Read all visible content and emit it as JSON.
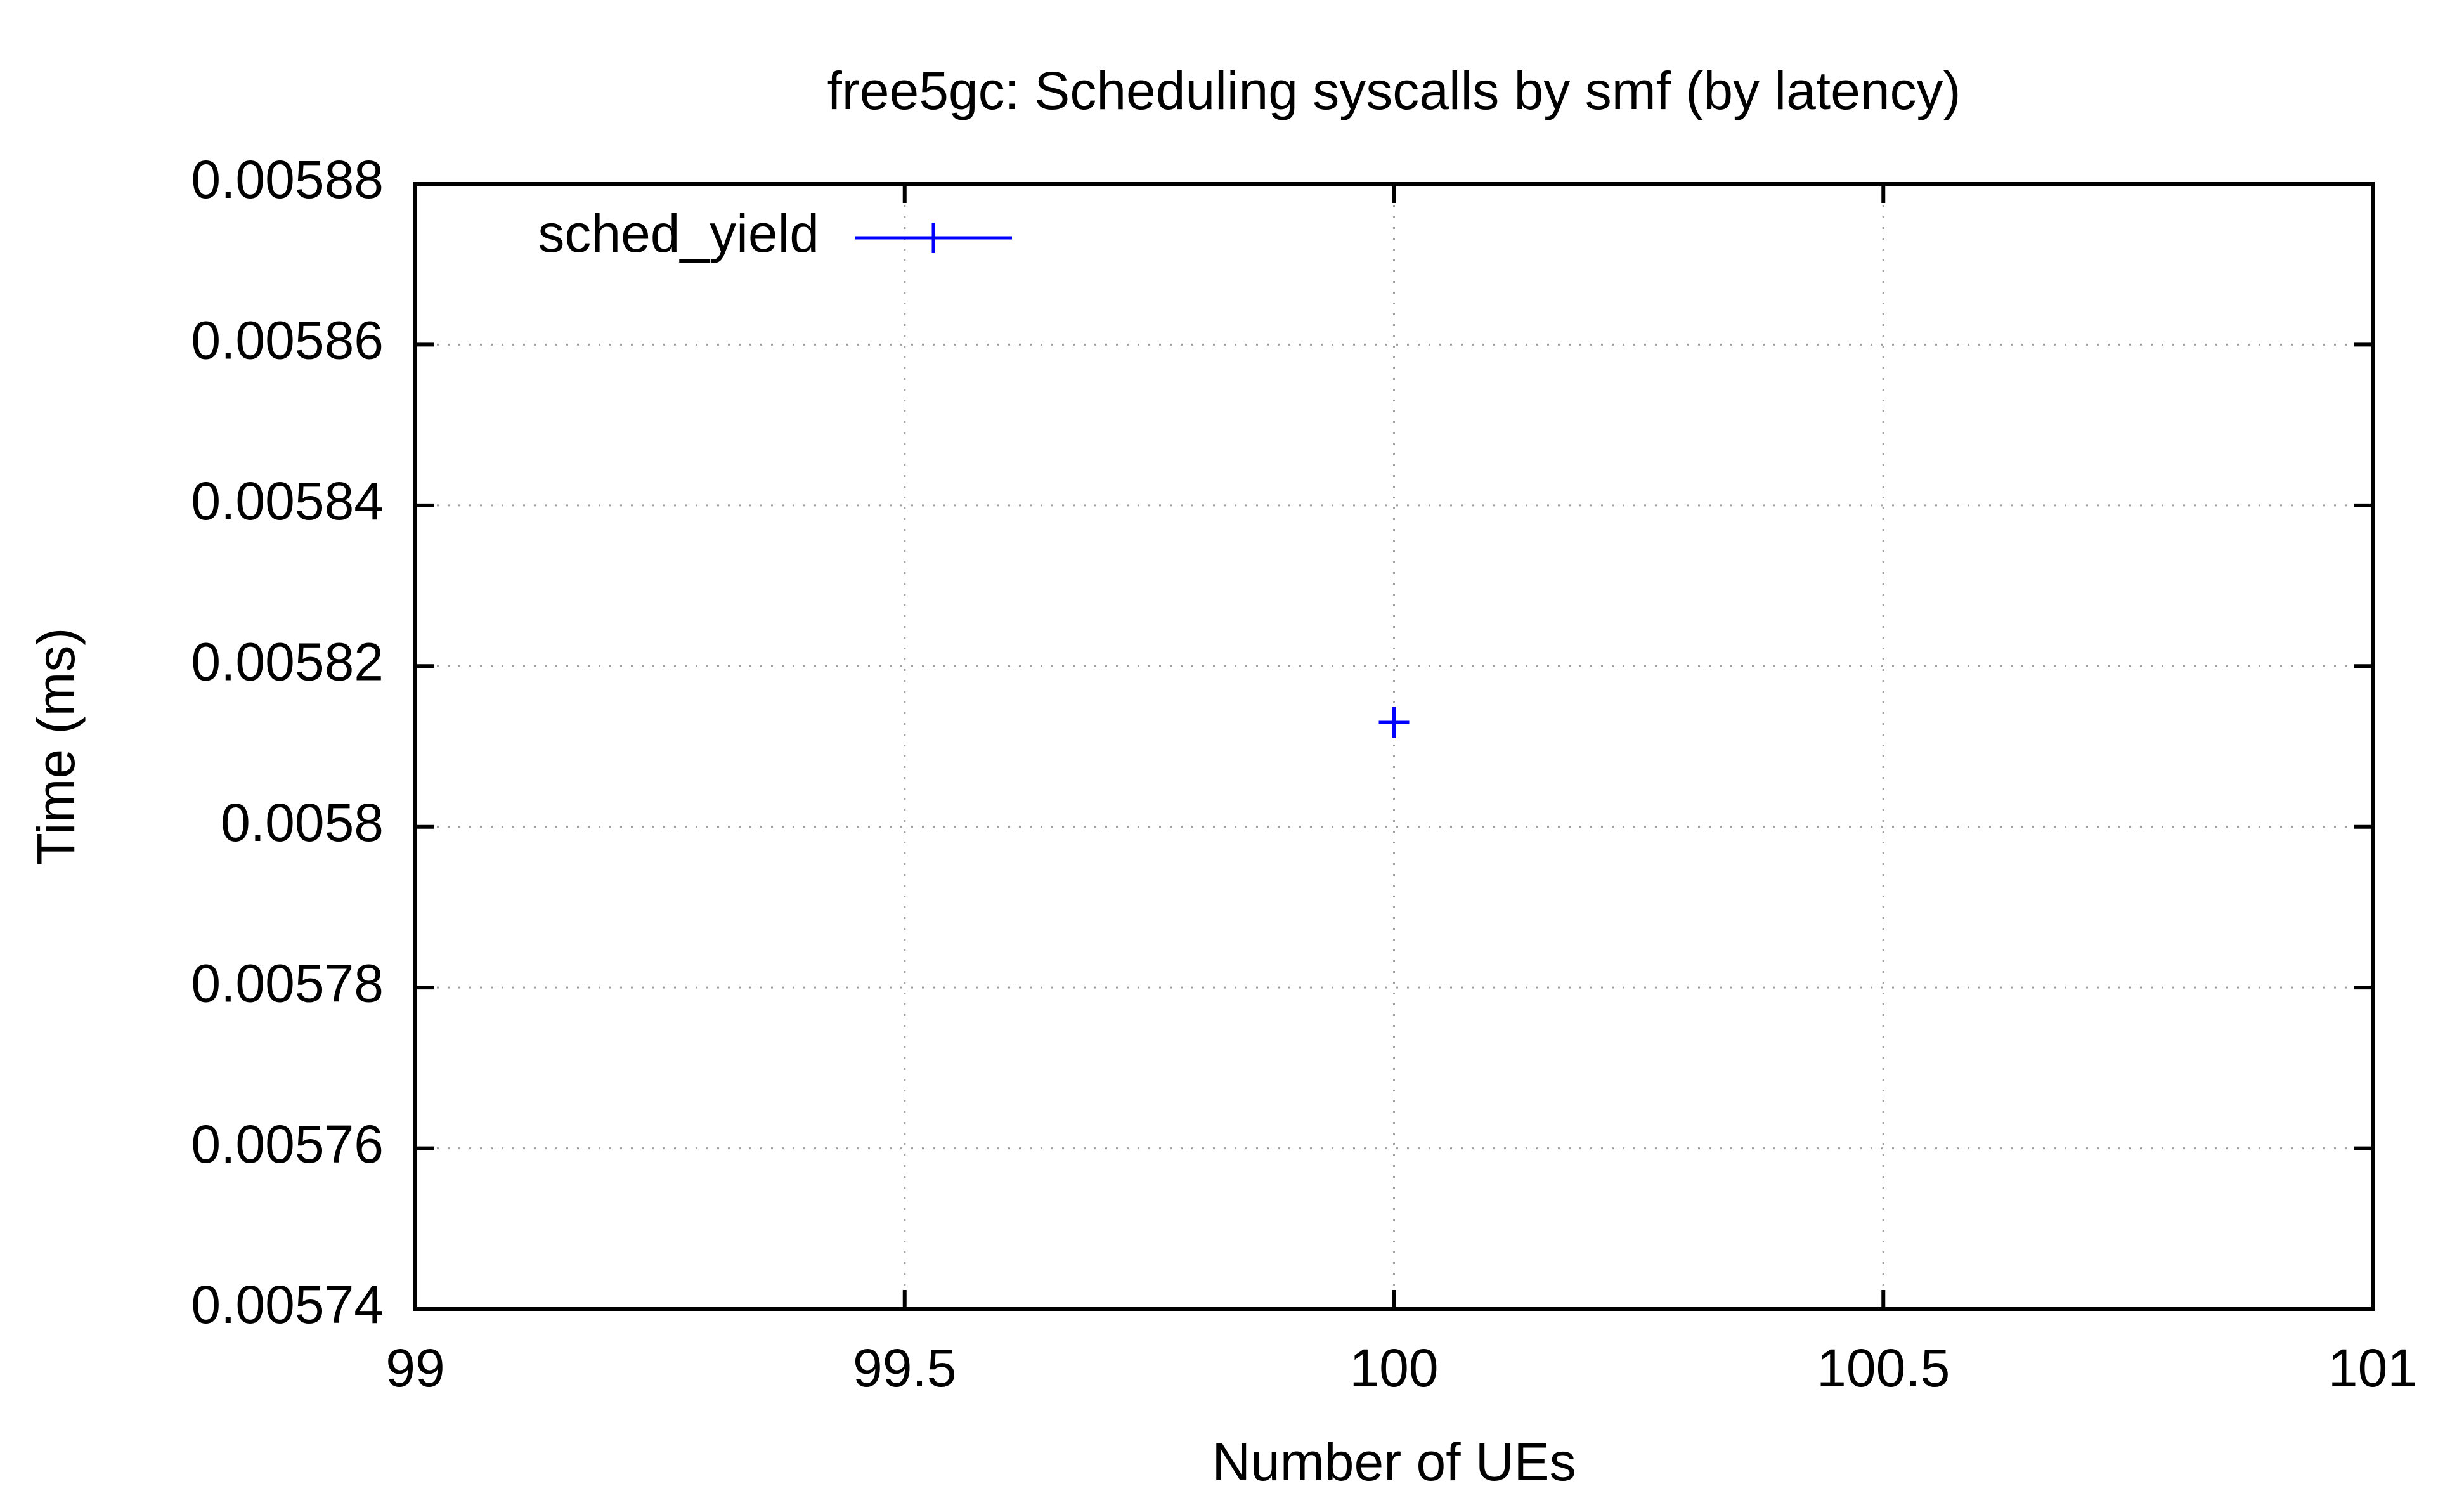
{
  "chart_data": {
    "type": "scatter",
    "title": "free5gc: Scheduling syscalls by smf (by latency)",
    "xlabel": "Number of UEs",
    "ylabel": "Time (ms)",
    "xlim": [
      99,
      101
    ],
    "ylim": [
      0.00574,
      0.00588
    ],
    "x_ticks": [
      99,
      99.5,
      100,
      100.5,
      101
    ],
    "x_tick_labels": [
      "99",
      "99.5",
      "100",
      "100.5",
      "101"
    ],
    "y_ticks": [
      0.00574,
      0.00576,
      0.00578,
      0.0058,
      0.00582,
      0.00584,
      0.00586,
      0.00588
    ],
    "y_tick_labels": [
      "0.00574",
      "0.00576",
      "0.00578",
      "0.0058",
      "0.00582",
      "0.00584",
      "0.00586",
      "0.00588"
    ],
    "grid": true,
    "legend_position": "top-left",
    "series": [
      {
        "name": "sched_yield",
        "color": "#0000ff",
        "marker": "plus",
        "points": [
          {
            "x": 100,
            "y": 0.005813
          }
        ]
      }
    ]
  }
}
